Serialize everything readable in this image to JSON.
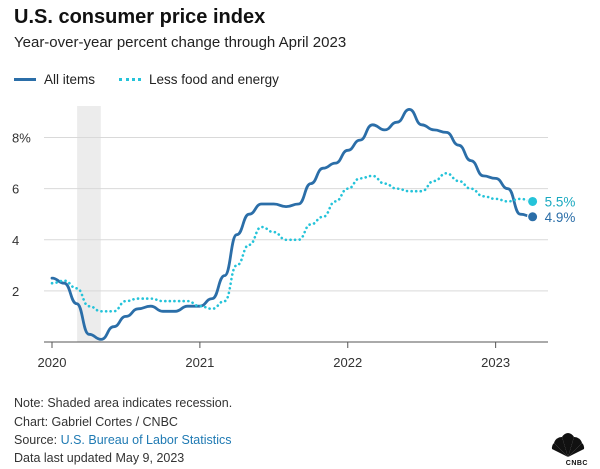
{
  "header": {
    "title": "U.S. consumer price index",
    "subtitle": "Year-over-year percent change through April 2023"
  },
  "legend": {
    "all_items": "All items",
    "less_food_energy": "Less food and energy"
  },
  "colors": {
    "all_items": "#2b6ea8",
    "less_food_energy": "#24c3d9",
    "recession": "#ececec",
    "grid": "#d9d9d9"
  },
  "chart_data": {
    "type": "line",
    "title": "U.S. consumer price index",
    "subtitle": "Year-over-year percent change through April 2023",
    "xlabel": "",
    "ylabel": "",
    "xlim": [
      2020.0,
      2023.3
    ],
    "ylim": [
      0,
      9
    ],
    "xticks": [
      2020,
      2021,
      2022,
      2023
    ],
    "xtick_labels": [
      "2020",
      "2021",
      "2022",
      "2023"
    ],
    "yticks": [
      2,
      4,
      6,
      8
    ],
    "ytick_labels": [
      "2",
      "4",
      "6",
      "8%"
    ],
    "grid": true,
    "recession": [
      2020.17,
      2020.33
    ],
    "series": [
      {
        "name": "All items",
        "style": "solid",
        "end_label": "4.9%",
        "x": [
          2020.0,
          2020.083,
          2020.167,
          2020.25,
          2020.333,
          2020.417,
          2020.5,
          2020.583,
          2020.667,
          2020.75,
          2020.833,
          2020.917,
          2021.0,
          2021.083,
          2021.167,
          2021.25,
          2021.333,
          2021.417,
          2021.5,
          2021.583,
          2021.667,
          2021.75,
          2021.833,
          2021.917,
          2022.0,
          2022.083,
          2022.167,
          2022.25,
          2022.333,
          2022.417,
          2022.5,
          2022.583,
          2022.667,
          2022.75,
          2022.833,
          2022.917,
          2023.0,
          2023.083,
          2023.167,
          2023.25
        ],
        "values": [
          2.5,
          2.3,
          1.5,
          0.3,
          0.1,
          0.6,
          1.0,
          1.3,
          1.4,
          1.2,
          1.2,
          1.4,
          1.4,
          1.7,
          2.6,
          4.2,
          5.0,
          5.4,
          5.4,
          5.3,
          5.4,
          6.2,
          6.8,
          7.0,
          7.5,
          7.9,
          8.5,
          8.3,
          8.6,
          9.1,
          8.5,
          8.3,
          8.2,
          7.7,
          7.1,
          6.5,
          6.4,
          6.0,
          5.0,
          4.9
        ]
      },
      {
        "name": "Less food and energy",
        "style": "dotted",
        "end_label": "5.5%",
        "x": [
          2020.0,
          2020.083,
          2020.167,
          2020.25,
          2020.333,
          2020.417,
          2020.5,
          2020.583,
          2020.667,
          2020.75,
          2020.833,
          2020.917,
          2021.0,
          2021.083,
          2021.167,
          2021.25,
          2021.333,
          2021.417,
          2021.5,
          2021.583,
          2021.667,
          2021.75,
          2021.833,
          2021.917,
          2022.0,
          2022.083,
          2022.167,
          2022.25,
          2022.333,
          2022.417,
          2022.5,
          2022.583,
          2022.667,
          2022.75,
          2022.833,
          2022.917,
          2023.0,
          2023.083,
          2023.167,
          2023.25
        ],
        "values": [
          2.3,
          2.4,
          2.1,
          1.4,
          1.2,
          1.2,
          1.6,
          1.7,
          1.7,
          1.6,
          1.6,
          1.6,
          1.4,
          1.3,
          1.6,
          3.0,
          3.8,
          4.5,
          4.3,
          4.0,
          4.0,
          4.6,
          4.9,
          5.5,
          6.0,
          6.4,
          6.5,
          6.2,
          6.0,
          5.9,
          5.9,
          6.3,
          6.6,
          6.3,
          6.0,
          5.7,
          5.6,
          5.5,
          5.6,
          5.5
        ]
      }
    ]
  },
  "footer": {
    "note": "Note: Shaded area indicates recession.",
    "chart_credit": "Chart: Gabriel Cortes / CNBC",
    "source_label": "Source:",
    "source_link": "U.S. Bureau of Labor Statistics",
    "updated": "Data last updated May 9, 2023",
    "logo_text": "CNBC"
  }
}
